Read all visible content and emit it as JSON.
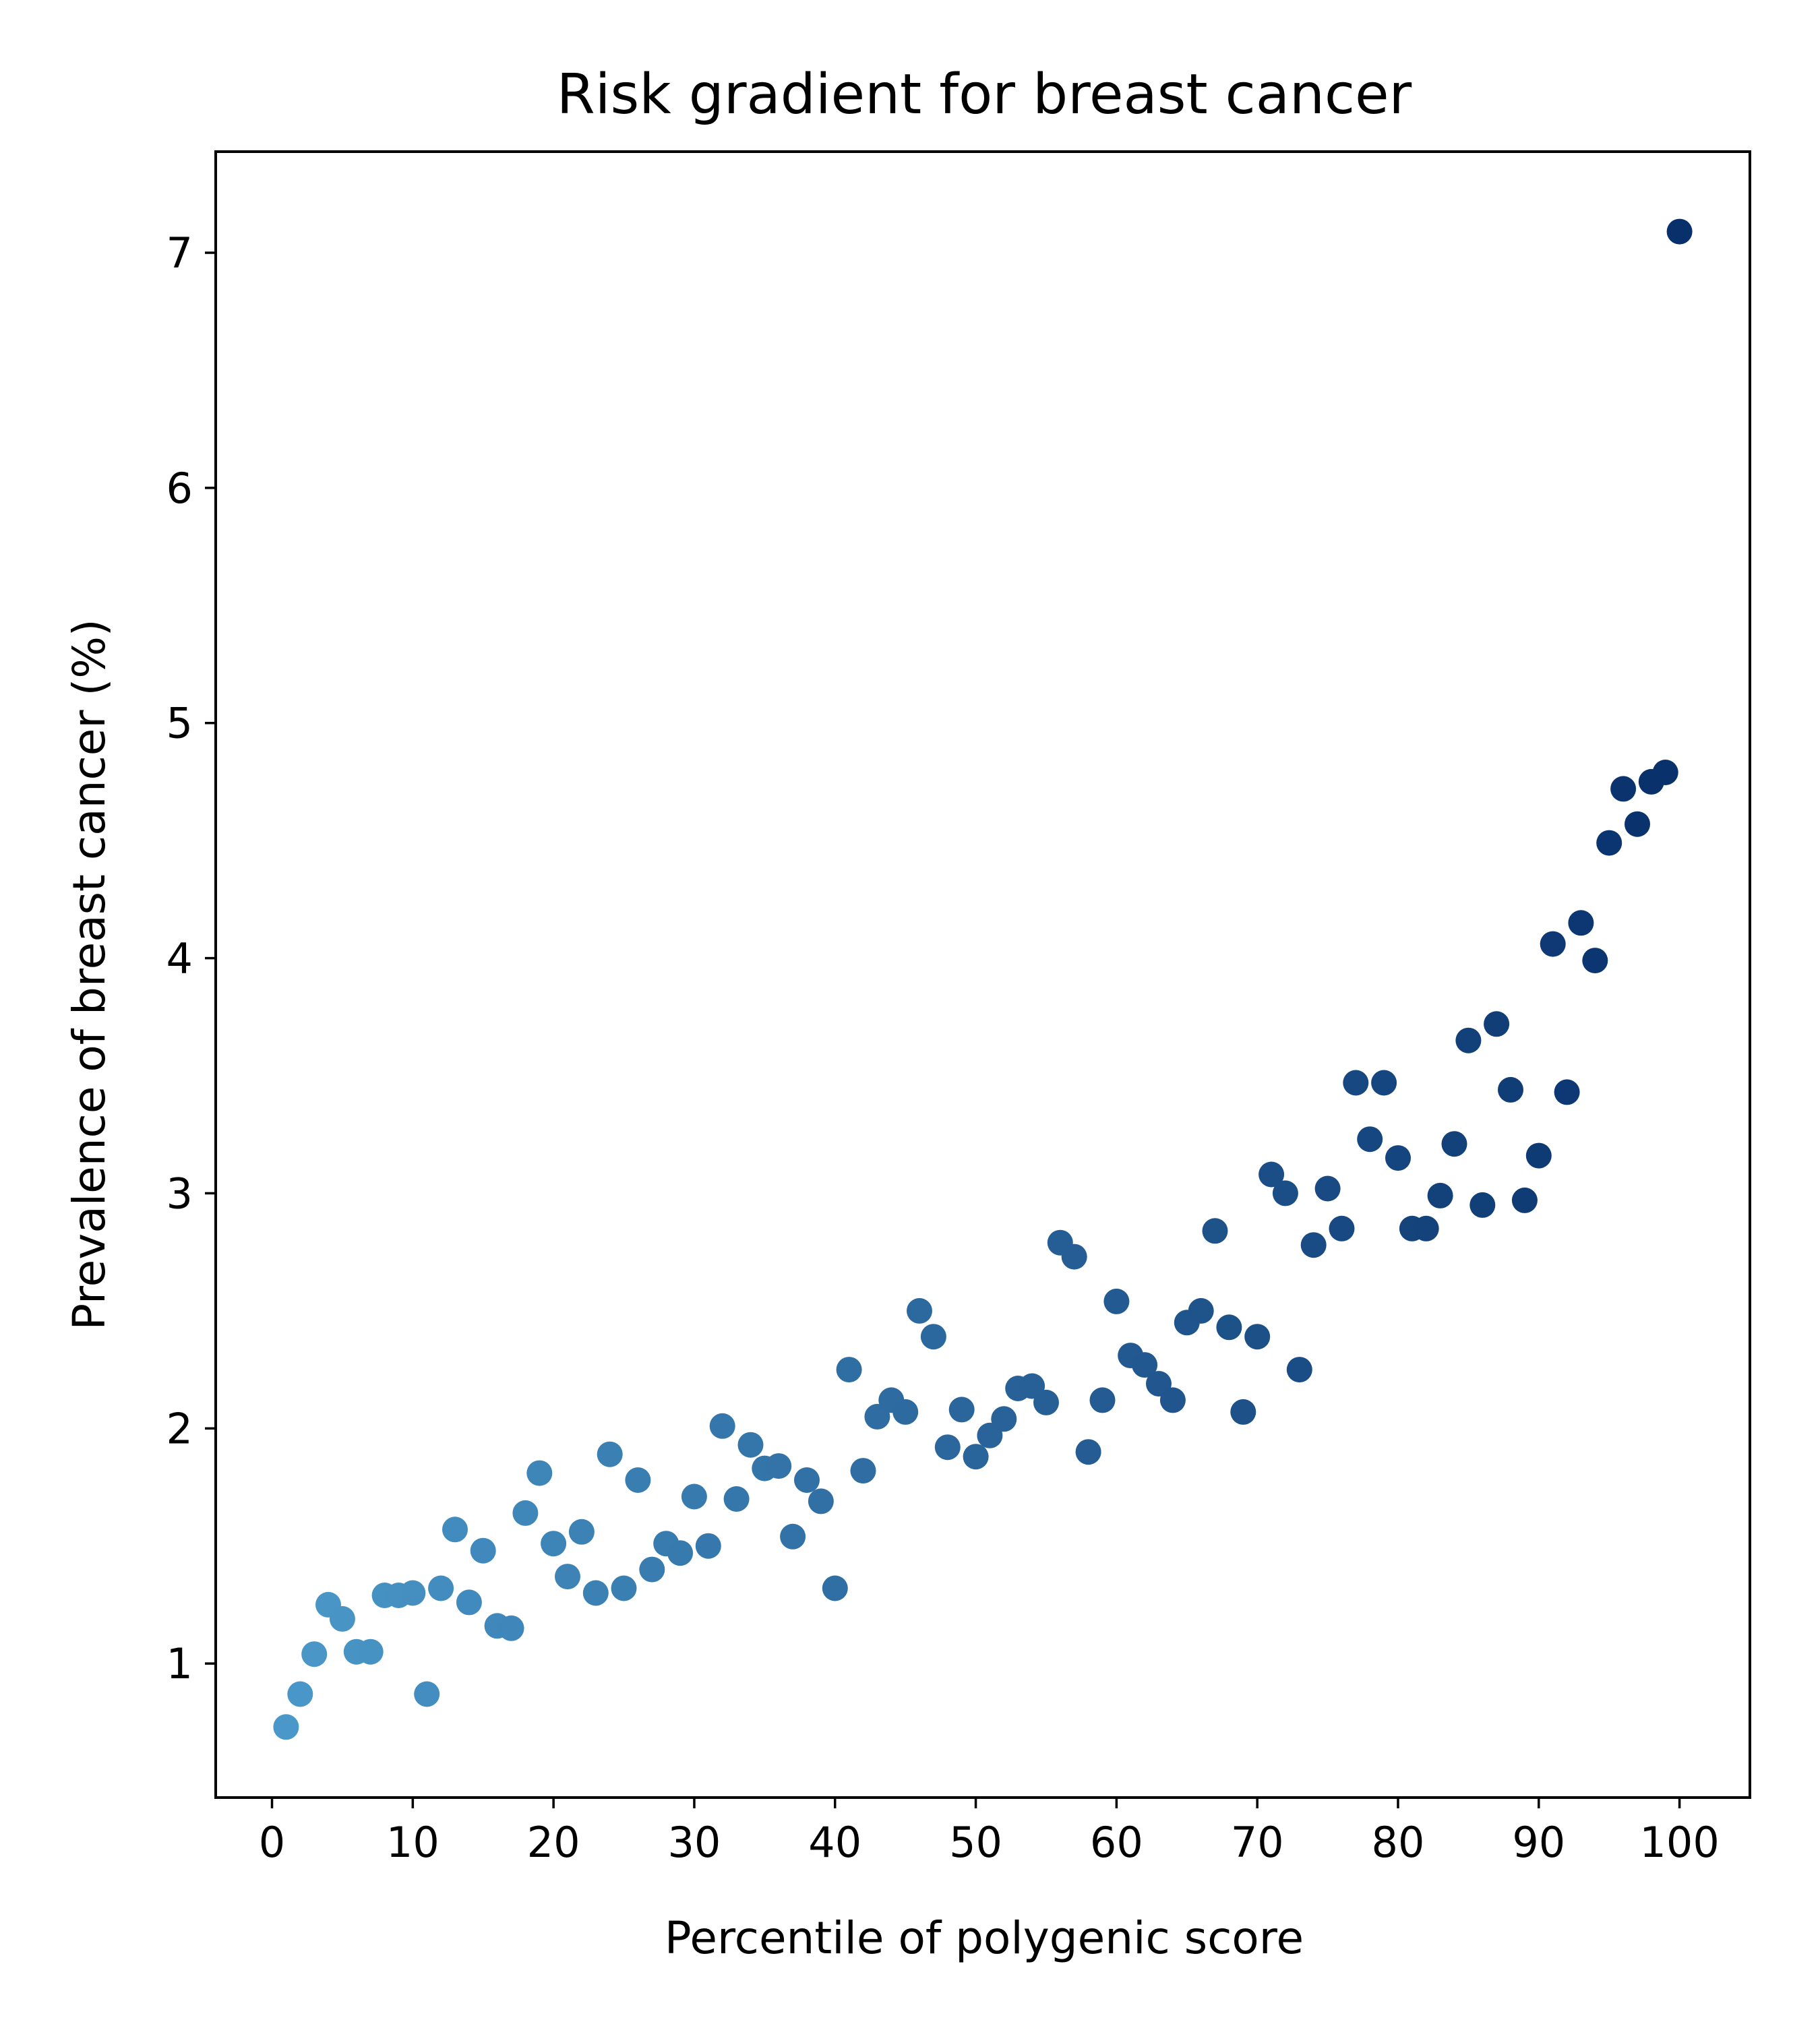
{
  "chart_data": {
    "type": "scatter",
    "title": "Risk gradient for breast cancer",
    "xlabel": "Percentile of polygenic score",
    "ylabel": "Prevalence of breast cancer (%)",
    "xlim": [
      -4,
      105
    ],
    "ylim": [
      0.43,
      7.43
    ],
    "xticks": [
      0,
      10,
      20,
      30,
      40,
      50,
      60,
      70,
      80,
      90,
      100
    ],
    "yticks": [
      1,
      2,
      3,
      4,
      5,
      6,
      7
    ],
    "grid": false,
    "legend": "none",
    "colormap": "Blues",
    "color_light": "#4a98c9",
    "color_dark": "#08306b",
    "series": [
      {
        "x": [
          1,
          2,
          3,
          4,
          5,
          6,
          7,
          8,
          9,
          10,
          11,
          12,
          13,
          14,
          15,
          16,
          17,
          18,
          19,
          20,
          21,
          22,
          23,
          24,
          25,
          26,
          27,
          28,
          29,
          30,
          31,
          32,
          33,
          34,
          35,
          36,
          37,
          38,
          39,
          40,
          41,
          42,
          43,
          44,
          45,
          46,
          47,
          48,
          49,
          50,
          51,
          52,
          53,
          54,
          55,
          56,
          57,
          58,
          59,
          60,
          61,
          62,
          63,
          64,
          65,
          66,
          67,
          68,
          69,
          70,
          71,
          72,
          73,
          74,
          75,
          76,
          77,
          78,
          79,
          80,
          81,
          82,
          83,
          84,
          85,
          86,
          87,
          88,
          89,
          90,
          91,
          92,
          93,
          94,
          95,
          96,
          97,
          98,
          99,
          100
        ],
        "y": [
          0.73,
          0.87,
          1.04,
          1.25,
          1.19,
          1.05,
          1.05,
          1.29,
          1.29,
          1.3,
          0.87,
          1.32,
          1.57,
          1.26,
          1.48,
          1.16,
          1.15,
          1.64,
          1.81,
          1.51,
          1.37,
          1.56,
          1.3,
          1.89,
          1.32,
          1.78,
          1.4,
          1.51,
          1.47,
          1.71,
          1.5,
          2.01,
          1.7,
          1.93,
          1.83,
          1.84,
          1.54,
          1.78,
          1.69,
          1.32,
          2.25,
          1.82,
          2.05,
          2.12,
          2.07,
          2.5,
          2.39,
          1.92,
          2.08,
          1.88,
          1.97,
          2.04,
          2.17,
          2.18,
          2.11,
          2.79,
          2.73,
          1.9,
          2.12,
          2.54,
          2.31,
          2.27,
          2.19,
          2.12,
          2.45,
          2.5,
          2.84,
          2.43,
          2.07,
          2.39,
          3.08,
          3.0,
          2.25,
          2.78,
          3.02,
          2.85,
          3.47,
          3.23,
          3.47,
          3.15,
          2.85,
          2.85,
          2.99,
          3.21,
          3.65,
          2.95,
          3.72,
          3.44,
          2.97,
          3.16,
          4.06,
          3.43,
          4.15,
          3.99,
          4.49,
          4.72,
          4.57,
          4.75,
          4.79,
          7.09
        ]
      }
    ]
  }
}
